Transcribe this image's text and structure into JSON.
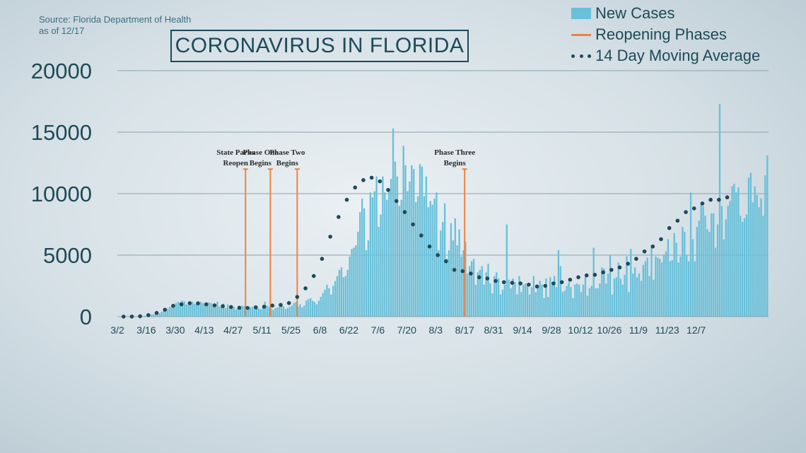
{
  "header": {
    "source_line1": "Source: Florida Department of Health",
    "source_line2": "as of 12/17",
    "title": "CORONAVIRUS IN FLORIDA"
  },
  "legend": {
    "bars": "New Cases",
    "phases": "Reopening Phases",
    "average": "14 Day Moving Average"
  },
  "colors": {
    "bar": "#69c0d9",
    "phase_line": "#ef8242",
    "average_dots": "#1e4a57",
    "grid": "#8aa3ad",
    "text": "#1e4a57"
  },
  "chart_data": {
    "type": "bar",
    "title": "CORONAVIRUS IN FLORIDA",
    "ylim": [
      0,
      20000
    ],
    "y_ticks": [
      0,
      5000,
      10000,
      15000,
      20000
    ],
    "grid": true,
    "legend_position": "top-right",
    "x_start": "3/2",
    "x_tick_labels": [
      "3/2",
      "3/16",
      "3/30",
      "4/13",
      "4/27",
      "5/11",
      "5/25",
      "6/8",
      "6/22",
      "7/6",
      "7/20",
      "8/3",
      "8/17",
      "8/31",
      "9/14",
      "9/28",
      "10/12",
      "10/26",
      "11/9",
      "11/23",
      "12/7"
    ],
    "x_tick_day_offsets": [
      0,
      14,
      28,
      42,
      56,
      70,
      84,
      98,
      112,
      126,
      140,
      154,
      168,
      182,
      196,
      210,
      224,
      238,
      252,
      266,
      280
    ],
    "series": [
      {
        "name": "New Cases",
        "type": "bar",
        "values": [
          0,
          0,
          0,
          2,
          0,
          3,
          3,
          9,
          11,
          17,
          9,
          35,
          40,
          70,
          80,
          120,
          150,
          190,
          220,
          260,
          280,
          400,
          450,
          550,
          650,
          800,
          900,
          1000,
          1100,
          1200,
          1150,
          1300,
          1250,
          1000,
          950,
          1100,
          1200,
          1050,
          1000,
          950,
          1200,
          1100,
          1000,
          1050,
          1150,
          1100,
          900,
          1000,
          1200,
          800,
          900,
          1050,
          700,
          1000,
          850,
          900,
          800,
          600,
          750,
          700,
          900,
          850,
          500,
          600,
          750,
          800,
          900,
          700,
          650,
          600,
          700,
          1200,
          900,
          800,
          650,
          550,
          700,
          750,
          800,
          900,
          850,
          600,
          700,
          800,
          900,
          1100,
          1200,
          800,
          1000,
          750,
          900,
          1300,
          1400,
          1500,
          1300,
          1200,
          1000,
          1300,
          1600,
          1900,
          2200,
          2600,
          2300,
          1800,
          2500,
          2900,
          3300,
          3800,
          4000,
          3200,
          3300,
          3800,
          4900,
          5500,
          5600,
          5800,
          6900,
          8500,
          9600,
          8800,
          5400,
          6200,
          10100,
          9700,
          10200,
          11400,
          7300,
          8300,
          11400,
          10100,
          9500,
          10400,
          11200,
          15300,
          12600,
          11400,
          9000,
          9500,
          13900,
          12300,
          10200,
          11000,
          12300,
          12000,
          9300,
          9800,
          12400,
          12200,
          9800,
          11400,
          8900,
          9400,
          9100,
          9600,
          10100,
          5400,
          7000,
          7700,
          9200,
          4700,
          5400,
          7600,
          6200,
          8000,
          5800,
          7100,
          4900,
          5400,
          6100,
          3500,
          4100,
          4500,
          4700,
          2600,
          3600,
          3800,
          4100,
          2600,
          3600,
          4300,
          2700,
          1900,
          3300,
          3600,
          3100,
          1800,
          2200,
          2600,
          7500,
          3000,
          2300,
          3100,
          2800,
          1800,
          3300,
          2000,
          2600,
          2700,
          2500,
          1800,
          2400,
          3300,
          2000,
          2500,
          2900,
          2600,
          1500,
          3100,
          1600,
          3200,
          2800,
          3300,
          2400,
          5400,
          4100,
          2000,
          2100,
          2500,
          2800,
          2400,
          1500,
          2600,
          2700,
          2600,
          2000,
          2600,
          3200,
          1700,
          2300,
          2500,
          5600,
          2300,
          2300,
          2700,
          4000,
          3900,
          2700,
          3500,
          5000,
          1800,
          3100,
          3200,
          4400,
          3100,
          2600,
          3400,
          4900,
          2000,
          5500,
          3500,
          4000,
          3200,
          3500,
          2900,
          4200,
          4500,
          4800,
          3300,
          5600,
          3000,
          4900,
          4800,
          4700,
          4400,
          5000,
          5300,
          6300,
          4500,
          4600,
          6800,
          6000,
          4400,
          4900,
          7300,
          6900,
          5000,
          4500,
          10100,
          6300,
          4500,
          7300,
          7800,
          9100,
          9000,
          8200,
          7100,
          6900,
          8400,
          8400,
          5600,
          7500,
          17300,
          9000,
          6300,
          7900,
          9000,
          9400,
          10600,
          10800,
          10100,
          10500,
          8200,
          7700,
          8000,
          8300,
          11300,
          11700,
          9300,
          10600,
          9900,
          8900,
          9600,
          8200,
          11500,
          13100
        ]
      },
      {
        "name": "14 Day Moving Average",
        "type": "dots",
        "x_start_offset": 3,
        "x_step": 4,
        "values": [
          0,
          5,
          30,
          120,
          300,
          560,
          880,
          1000,
          1090,
          1080,
          1000,
          920,
          850,
          780,
          720,
          700,
          750,
          800,
          900,
          950,
          1100,
          1600,
          2300,
          3300,
          4700,
          6500,
          8100,
          9500,
          10500,
          11100,
          11300,
          11000,
          10300,
          9400,
          8500,
          7500,
          6600,
          5700,
          5000,
          4500,
          3800,
          3700,
          3500,
          3200,
          3100,
          2900,
          2800,
          2750,
          2700,
          2600,
          2450,
          2500,
          2700,
          2800,
          3000,
          3200,
          3350,
          3400,
          3600,
          3800,
          4000,
          4300,
          4700,
          5300,
          5700,
          6300,
          7200,
          7800,
          8500,
          8800,
          9200,
          9500,
          9500,
          9700
        ]
      },
      {
        "name": "Reopening Phases",
        "type": "vertical-line",
        "events": [
          {
            "day": 62,
            "height": 12000,
            "label": [
              "State Parks",
              "Reopen"
            ]
          },
          {
            "day": 74,
            "height": 12000,
            "label": [
              "Phase One",
              "Begins"
            ]
          },
          {
            "day": 87,
            "height": 12000,
            "label": [
              "Phase Two",
              "Begins"
            ]
          },
          {
            "day": 168,
            "height": 12000,
            "label": [
              "Phase Three",
              "Begins"
            ]
          }
        ]
      }
    ]
  }
}
